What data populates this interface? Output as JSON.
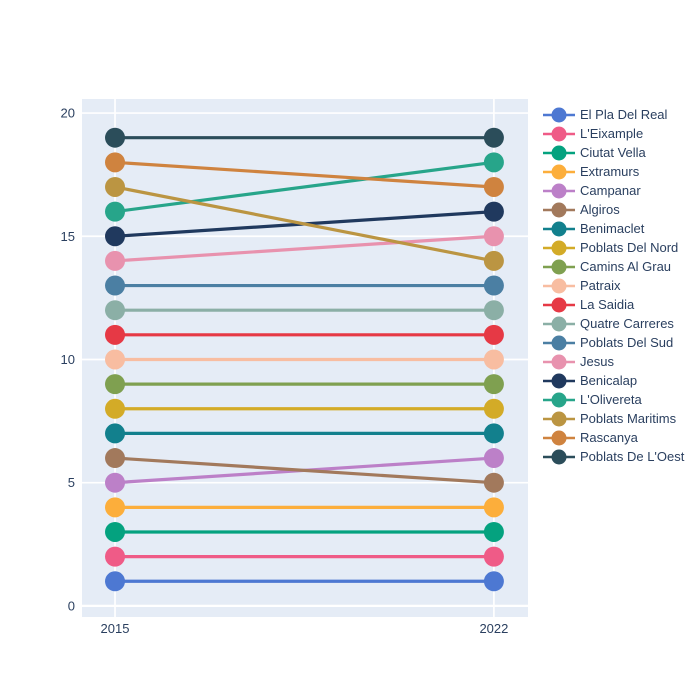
{
  "chart_data": {
    "type": "line",
    "variant": "slope",
    "title": "",
    "x": [
      2015,
      2022
    ],
    "xticks": [
      "2015",
      "2022"
    ],
    "yticks": [
      0,
      5,
      10,
      15,
      20
    ],
    "xlim": [
      2014.39,
      2022.63
    ],
    "ylim": [
      -0.45,
      20.57
    ],
    "grid": true,
    "legend_position": "right",
    "plot_background": "#e5ecf6",
    "grid_color": "#ffffff",
    "axis_text_color": "#2a3f5f",
    "series": [
      {
        "name": "El Pla Del Real",
        "color": "#4d78d2",
        "values": [
          1,
          1
        ]
      },
      {
        "name": "L'Eixample",
        "color": "#ef5b87",
        "values": [
          2,
          2
        ]
      },
      {
        "name": "Ciutat Vella",
        "color": "#04a27f",
        "values": [
          3,
          3
        ]
      },
      {
        "name": "Extramurs",
        "color": "#fcae3b",
        "values": [
          4,
          4
        ]
      },
      {
        "name": "Campanar",
        "color": "#bc80c8",
        "values": [
          5,
          6
        ]
      },
      {
        "name": "Algiros",
        "color": "#a2795c",
        "values": [
          6,
          5
        ]
      },
      {
        "name": "Benimaclet",
        "color": "#12808d",
        "values": [
          7,
          7
        ]
      },
      {
        "name": "Poblats Del Nord",
        "color": "#d3ab27",
        "values": [
          8,
          8
        ]
      },
      {
        "name": "Camins Al Grau",
        "color": "#7fa050",
        "values": [
          9,
          9
        ]
      },
      {
        "name": "Patraix",
        "color": "#f8bda1",
        "values": [
          10,
          10
        ]
      },
      {
        "name": "La Saidia",
        "color": "#e63945",
        "values": [
          11,
          11
        ]
      },
      {
        "name": "Quatre Carreres",
        "color": "#8bafa6",
        "values": [
          12,
          12
        ]
      },
      {
        "name": "Poblats Del Sud",
        "color": "#4b7fa3",
        "values": [
          13,
          13
        ]
      },
      {
        "name": "Jesus",
        "color": "#e892ae",
        "values": [
          14,
          15
        ]
      },
      {
        "name": "Benicalap",
        "color": "#20395e",
        "values": [
          15,
          16
        ]
      },
      {
        "name": "L'Olivereta",
        "color": "#27a58a",
        "values": [
          16,
          18
        ]
      },
      {
        "name": "Poblats Maritims",
        "color": "#bb9542",
        "values": [
          17,
          14
        ]
      },
      {
        "name": "Rascanya",
        "color": "#cf833f",
        "values": [
          18,
          17
        ]
      },
      {
        "name": "Poblats De L'Oest",
        "color": "#2b4d5a",
        "values": [
          19,
          19
        ]
      }
    ]
  }
}
